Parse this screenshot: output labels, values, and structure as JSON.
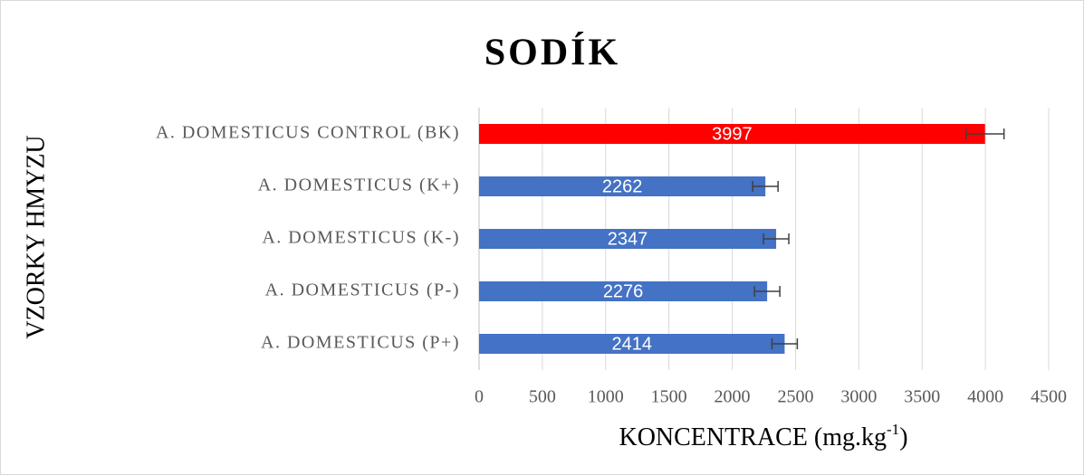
{
  "chart_data": {
    "type": "bar",
    "orientation": "horizontal",
    "title": "SODÍK",
    "x_label": [
      "KONCENTRACE (mg.kg",
      "-1",
      ")"
    ],
    "y_label": "VZORKY HMYZU",
    "categories": [
      "A. DOMESTICUS CONTROL (BK)",
      "A. DOMESTICUS (K+)",
      "A. DOMESTICUS (K-)",
      "A. DOMESTICUS (P-)",
      "A. DOMESTICUS (P+)"
    ],
    "values": [
      3997,
      2262,
      2347,
      2276,
      2414
    ],
    "errors": [
      150,
      100,
      100,
      100,
      100
    ],
    "colors": [
      "#ff0000",
      "#4472c4",
      "#4472c4",
      "#4472c4",
      "#4472c4"
    ],
    "xlim": [
      0,
      4500
    ],
    "xticks": [
      0,
      500,
      1000,
      1500,
      2000,
      2500,
      3000,
      3500,
      4000,
      4500
    ],
    "grid": true
  }
}
